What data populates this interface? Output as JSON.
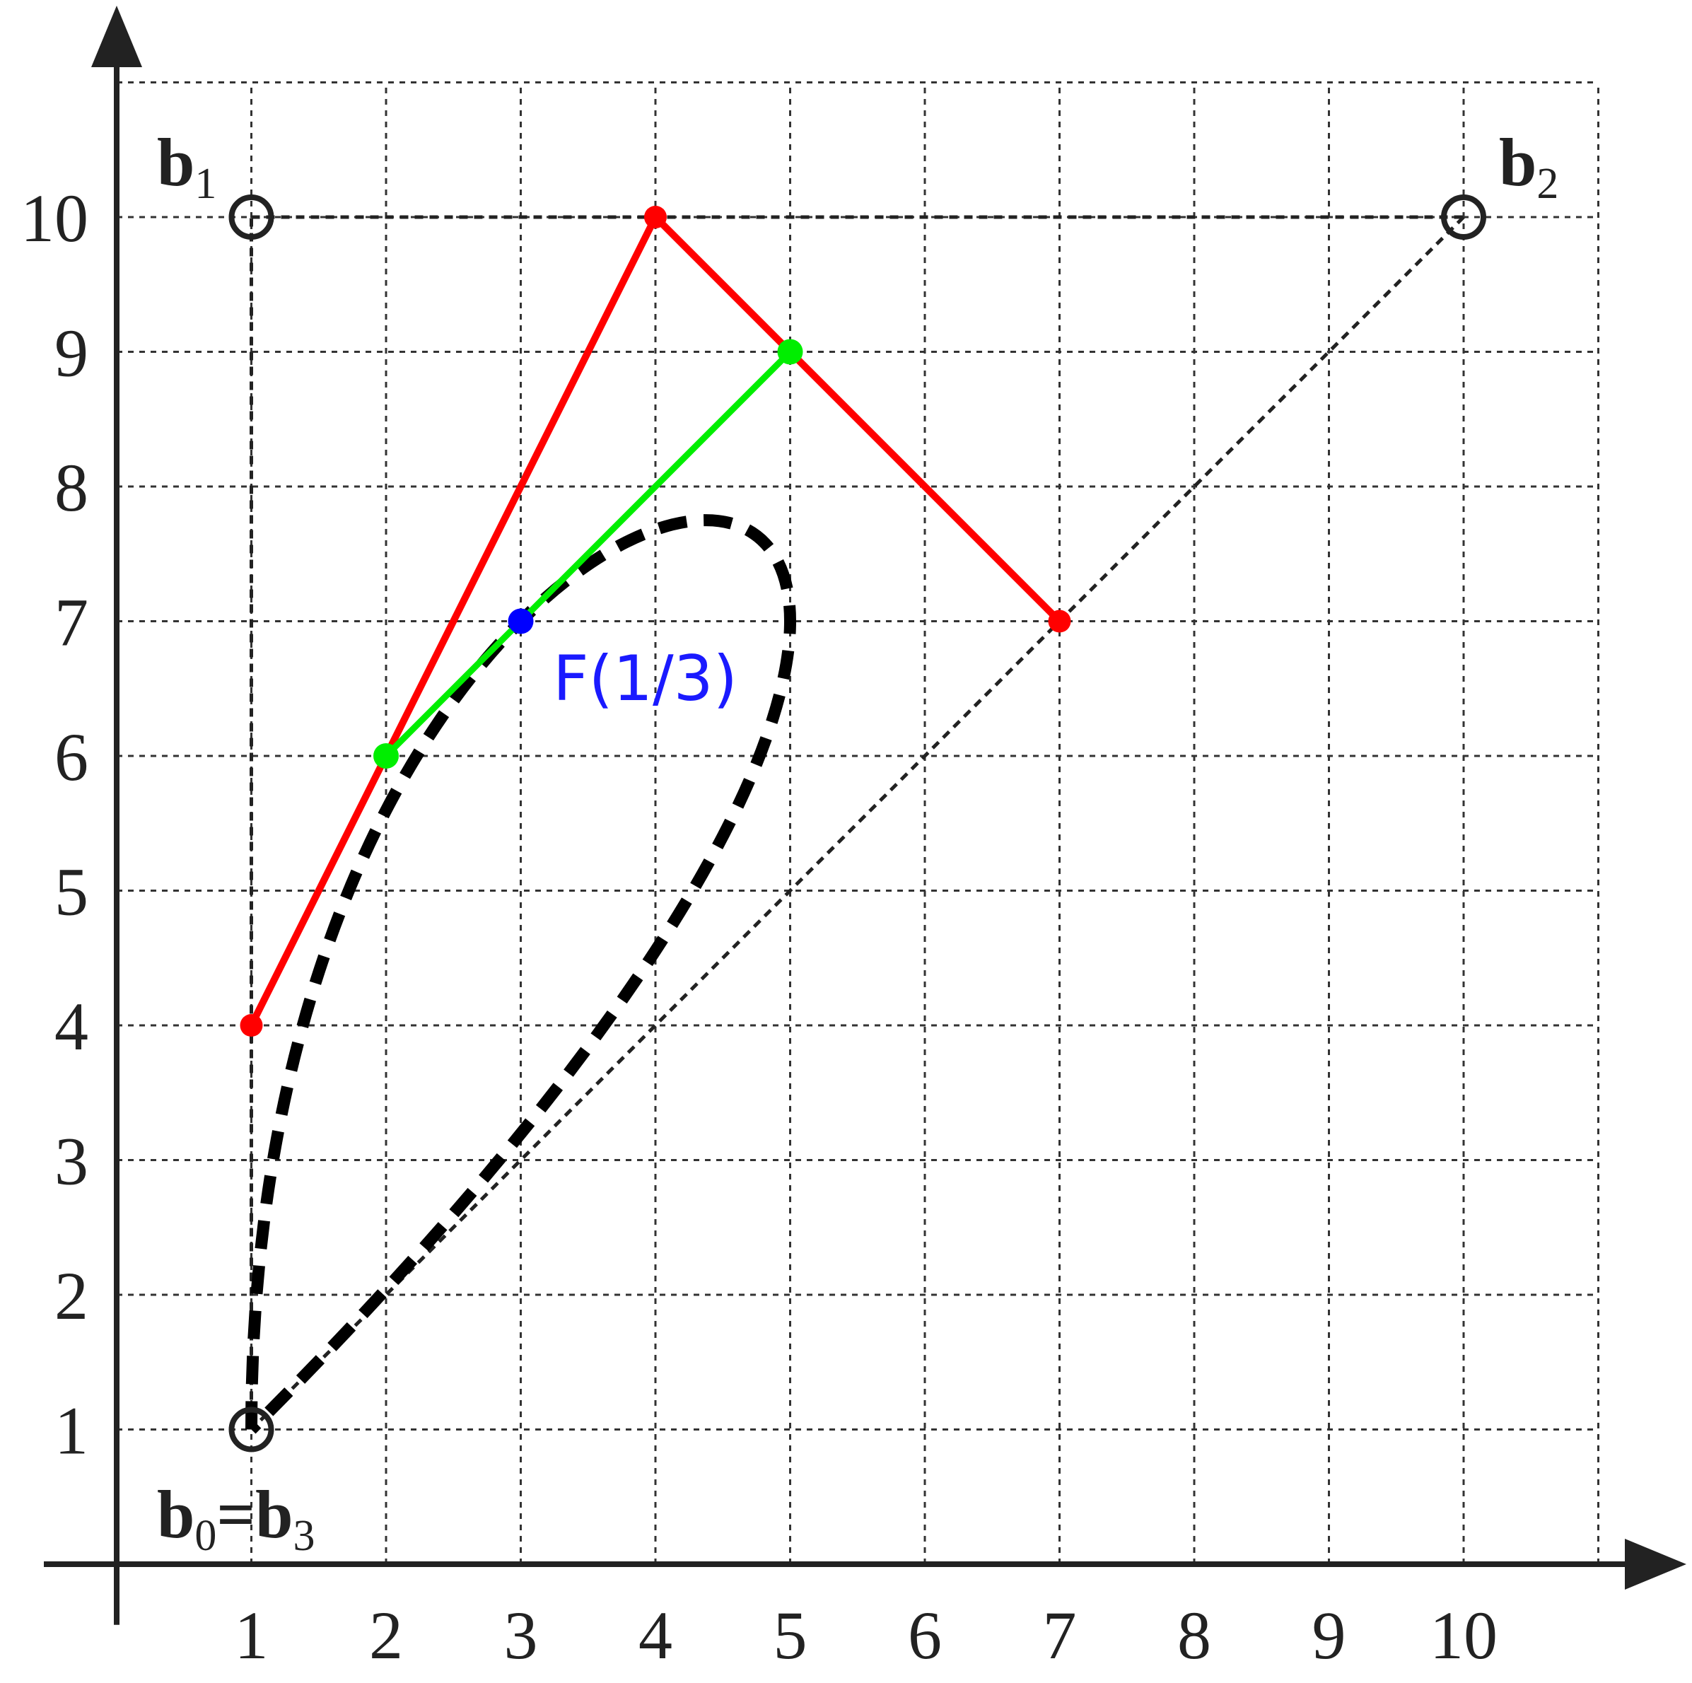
{
  "chart_data": {
    "type": "line",
    "xlim": [
      0,
      11
    ],
    "ylim": [
      0,
      11
    ],
    "x_ticks": [
      "1",
      "2",
      "3",
      "4",
      "5",
      "6",
      "7",
      "8",
      "9",
      "10"
    ],
    "y_ticks": [
      "1",
      "2",
      "3",
      "4",
      "5",
      "6",
      "7",
      "8",
      "9",
      "10"
    ],
    "grid": true,
    "control_points": [
      {
        "name": "b",
        "sub": "0",
        "x": 1,
        "y": 1
      },
      {
        "name": "b",
        "sub": "1",
        "x": 1,
        "y": 10
      },
      {
        "name": "b",
        "sub": "2",
        "x": 10,
        "y": 10
      },
      {
        "name": "b",
        "sub": "3",
        "x": 1,
        "y": 1
      }
    ],
    "labels": {
      "b1": {
        "main": "b",
        "sub": "1"
      },
      "b2": {
        "main": "b",
        "sub": "2"
      },
      "b0b3": {
        "main1": "b",
        "sub1": "0",
        "eq": "=",
        "main2": "b",
        "sub2": "3"
      }
    },
    "de_casteljau_level1": {
      "color": "#ff0000",
      "points": [
        [
          1,
          4
        ],
        [
          4,
          10
        ],
        [
          7,
          7
        ]
      ]
    },
    "de_casteljau_level2": {
      "color": "#00ee00",
      "points": [
        [
          2,
          6
        ],
        [
          5,
          9
        ]
      ]
    },
    "evaluated_point": {
      "color": "#0000ff",
      "x": 3,
      "y": 7,
      "label": "F(1/3)"
    },
    "curve_color": "#000000",
    "polygon_color": "#222222"
  }
}
